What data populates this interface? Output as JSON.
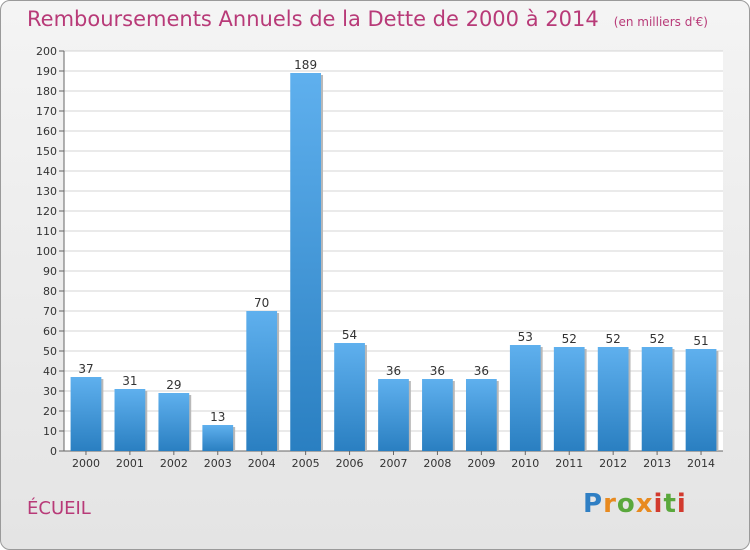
{
  "title": {
    "main": "Remboursements Annuels de la Dette de 2000 à 2014",
    "sub": "(en milliers d'€)"
  },
  "commune": "ÉCUEIL",
  "logo": {
    "text": "Proxiti",
    "colors": [
      "#2f7fc4",
      "#e88a1f",
      "#5aa83c",
      "#d23a2e"
    ]
  },
  "colors": {
    "title": "#b83a78",
    "bar_light": "#5fb0ee",
    "bar_dark": "#2a7fc1",
    "grid": "#d4d4d4"
  },
  "chart_data": {
    "type": "bar",
    "title": "Remboursements Annuels de la Dette de 2000 à 2014",
    "subtitle": "(en milliers d'€)",
    "xlabel": "",
    "ylabel": "",
    "categories": [
      "2000",
      "2001",
      "2002",
      "2003",
      "2004",
      "2005",
      "2006",
      "2007",
      "2008",
      "2009",
      "2010",
      "2011",
      "2012",
      "2013",
      "2014"
    ],
    "values": [
      37,
      31,
      29,
      13,
      70,
      189,
      54,
      36,
      36,
      36,
      53,
      52,
      52,
      52,
      51
    ],
    "ylim": [
      0,
      200
    ],
    "yticks": [
      0,
      10,
      20,
      30,
      40,
      50,
      60,
      70,
      80,
      90,
      100,
      110,
      120,
      130,
      140,
      150,
      160,
      170,
      180,
      190,
      200
    ],
    "grid": true,
    "data_labels": true,
    "legend": "none"
  }
}
